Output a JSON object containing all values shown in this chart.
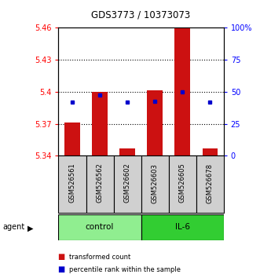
{
  "title": "GDS3773 / 10373073",
  "samples": [
    "GSM526561",
    "GSM526562",
    "GSM526602",
    "GSM526603",
    "GSM526605",
    "GSM526678"
  ],
  "groups": [
    "control",
    "control",
    "control",
    "IL-6",
    "IL-6",
    "IL-6"
  ],
  "red_values": [
    5.371,
    5.4,
    5.347,
    5.401,
    5.46,
    5.347
  ],
  "blue_values": [
    5.39,
    5.397,
    5.39,
    5.391,
    5.4,
    5.39
  ],
  "ylim": [
    5.34,
    5.46
  ],
  "yticks_left": [
    5.34,
    5.37,
    5.4,
    5.43,
    5.46
  ],
  "yticks_right": [
    0,
    25,
    50,
    75,
    100
  ],
  "grid_vals": [
    5.37,
    5.4,
    5.43
  ],
  "control_color": "#90EE90",
  "il6_color": "#32CD32",
  "bar_color": "#CC1111",
  "dot_color": "#0000CC",
  "background_color": "#ffffff",
  "agent_label": "agent",
  "legend_items": [
    "transformed count",
    "percentile rank within the sample"
  ],
  "n_control": 3,
  "n_il6": 3
}
